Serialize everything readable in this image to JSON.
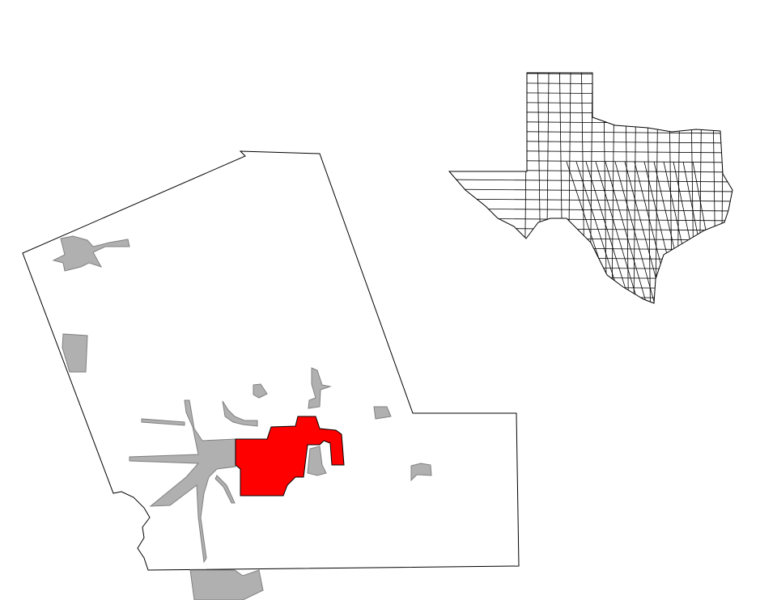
{
  "map": {
    "county_fill": "#ffffff",
    "county_stroke": "#000000",
    "highlight_fill": "#ff0000",
    "other_places_fill": "#b0b0b0",
    "other_places_stroke": "#808080",
    "state_fill": "#ffffff",
    "state_stroke": "#000000"
  }
}
